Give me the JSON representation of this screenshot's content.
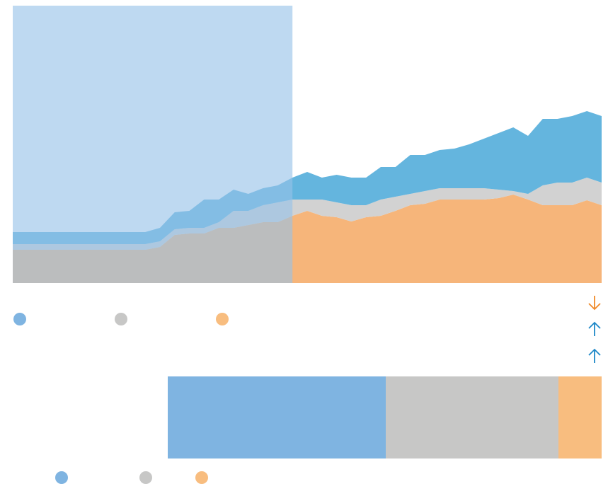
{
  "chart_data": [
    {
      "type": "stacked_area",
      "x": [
        0,
        1,
        2,
        3,
        4,
        5,
        6,
        7,
        8,
        9,
        10,
        11,
        12,
        13,
        14,
        15,
        16,
        17,
        18,
        19,
        20,
        21,
        22,
        23,
        24,
        25,
        26,
        27,
        28,
        29,
        30,
        31,
        32,
        33,
        34,
        35,
        36,
        37,
        38,
        39,
        40
      ],
      "xlim": [
        0,
        40
      ],
      "ylim": [
        0,
        392
      ],
      "highlight_x": [
        0,
        19
      ],
      "highlight_color": "rgba(150,193,232,0.62)",
      "series": [
        {
          "color": "#f6b57a",
          "values": [
            47,
            47,
            47,
            47,
            47,
            47,
            47,
            47,
            47,
            47,
            51,
            68,
            70,
            70,
            78,
            78,
            82,
            86,
            86,
            95,
            102,
            95,
            93,
            87,
            93,
            95,
            102,
            110,
            112,
            118,
            118,
            118,
            118,
            120,
            125,
            118,
            110,
            110,
            110,
            117,
            110
          ]
        },
        {
          "color": "#d2d2d2",
          "values": [
            8,
            8,
            8,
            8,
            8,
            8,
            8,
            8,
            8,
            8,
            8,
            8,
            8,
            8,
            8,
            24,
            20,
            24,
            28,
            23,
            16,
            23,
            21,
            23,
            17,
            23,
            20,
            16,
            18,
            16,
            16,
            16,
            16,
            12,
            5,
            8,
            28,
            32,
            32,
            32,
            32
          ]
        },
        {
          "color": "#64b5de",
          "values": [
            17,
            17,
            17,
            17,
            17,
            17,
            17,
            17,
            17,
            17,
            19,
            24,
            24,
            40,
            32,
            30,
            24,
            24,
            24,
            31,
            39,
            31,
            39,
            39,
            39,
            46,
            42,
            55,
            51,
            54,
            56,
            62,
            70,
            80,
            90,
            82,
            94,
            90,
            94,
            94,
            94
          ]
        }
      ]
    },
    {
      "type": "stacked_bar",
      "xlim": [
        0,
        613
      ],
      "series": [
        {
          "color": "#7fb4e1",
          "values": [
            308
          ]
        },
        {
          "color": "#c7c7c6",
          "values": [
            244
          ]
        },
        {
          "color": "#f8bd7f",
          "values": [
            61
          ]
        }
      ]
    }
  ]
}
